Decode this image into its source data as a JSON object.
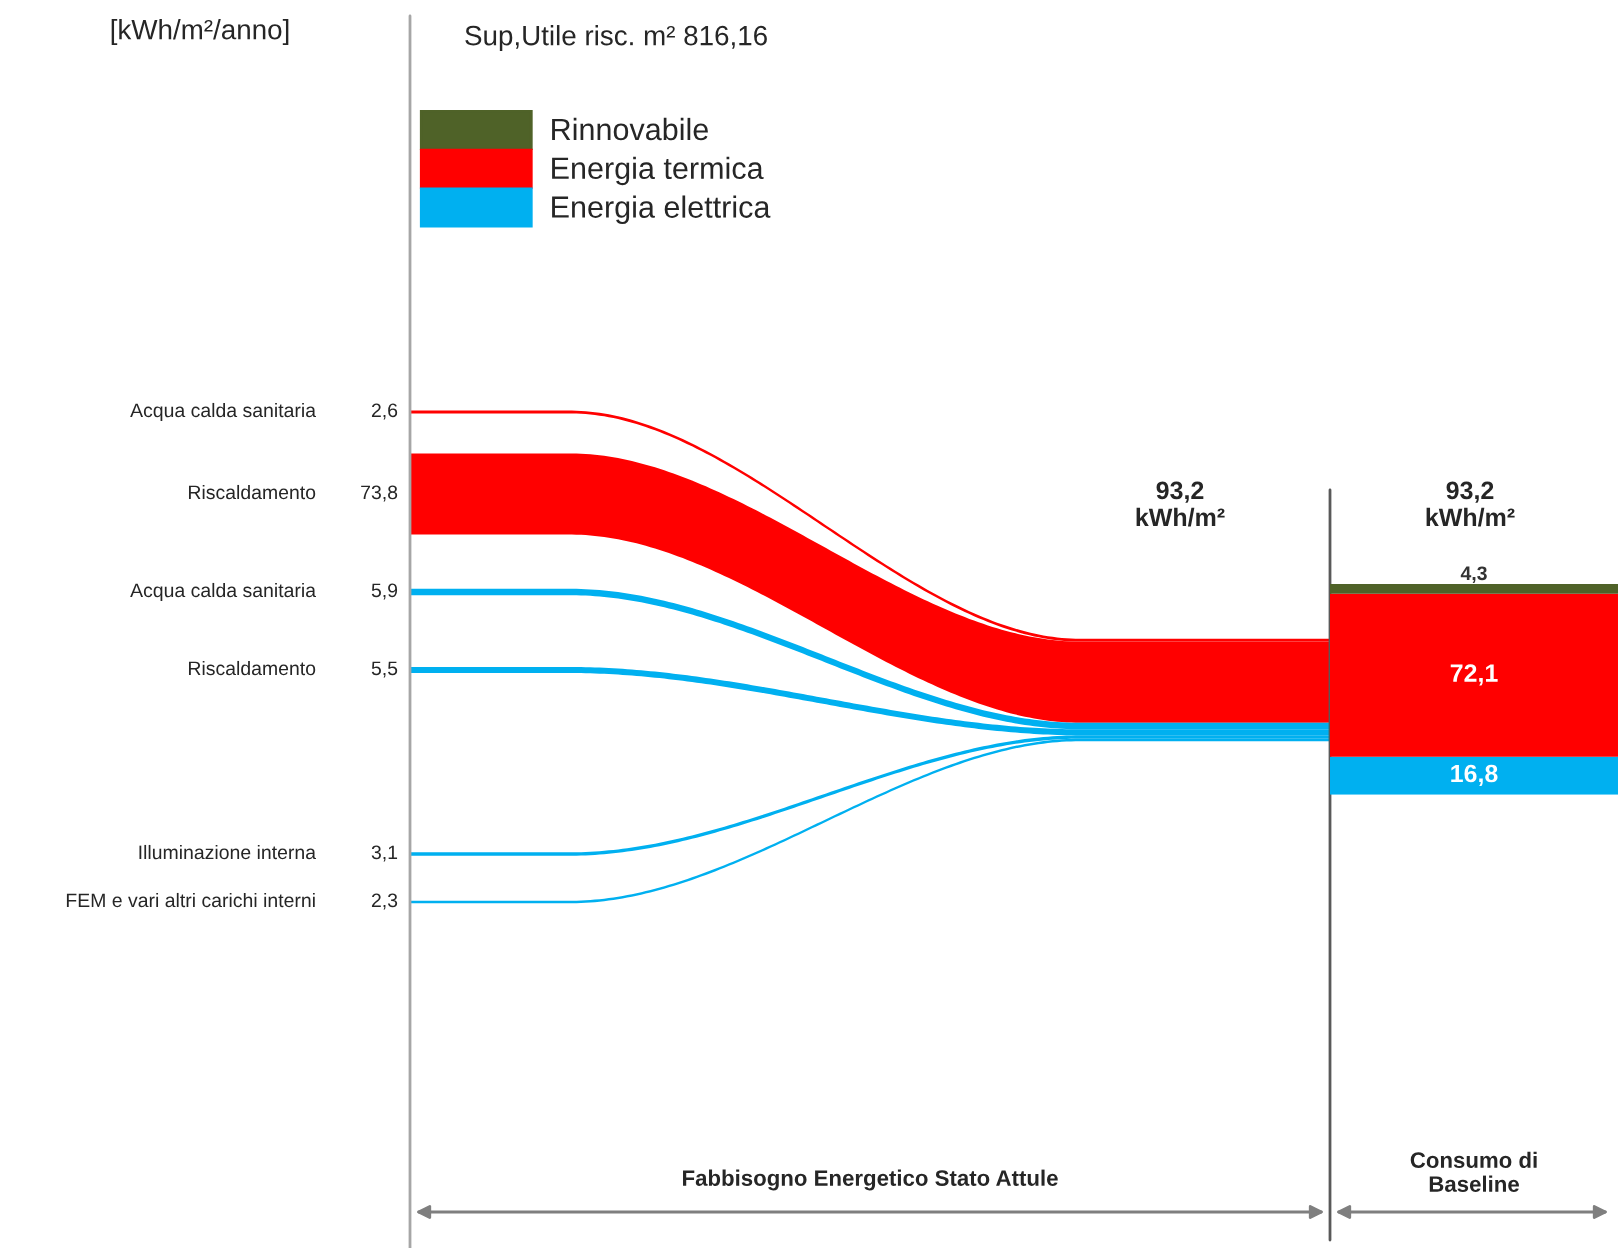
{
  "chart_data": [
    {
      "type": "other",
      "ylabel": "[kWh/m²/anno]",
      "subtitle": "Sup,Utile risc. m² 816,16",
      "categories": [
        "Acqua calda sanitaria",
        "Riscaldamento",
        "Acqua calda sanitaria",
        "Riscaldamento",
        "Illuminazione interna",
        "FEM e vari altri carichi interni"
      ],
      "values": [
        2.6,
        73.8,
        5.9,
        5.5,
        3.1,
        2.3
      ],
      "value_labels": [
        "2,6",
        "73,8",
        "5,9",
        "5,5",
        "3,1",
        "2,3"
      ],
      "colors": [
        "#ff0000",
        "#ff0000",
        "#00b0f0",
        "#00b0f0",
        "#00b0f0",
        "#00b0f0"
      ],
      "annotations": [
        "93,2\nkWh/m²",
        "Fabbisogno Energetico Stato Attule"
      ]
    },
    {
      "type": "bar",
      "stacked": true,
      "categories": [
        null
      ],
      "series": [
        {
          "name": "Energia elettrica",
          "color": "#00b0f0",
          "values": [
            16.8
          ],
          "value_labels": [
            "16,8"
          ]
        },
        {
          "name": "Energia termica",
          "color": "#ff0000",
          "values": [
            72.1
          ],
          "value_labels": [
            "72,1"
          ]
        },
        {
          "name": "Rinnovabile",
          "color": "#4f6228",
          "values": [
            4.3
          ],
          "value_labels": [
            "4,3"
          ]
        }
      ],
      "legend": "top left",
      "annotations": [
        "93,2\nkWh/m²",
        "Consumo di\nBaseline"
      ]
    }
  ]
}
